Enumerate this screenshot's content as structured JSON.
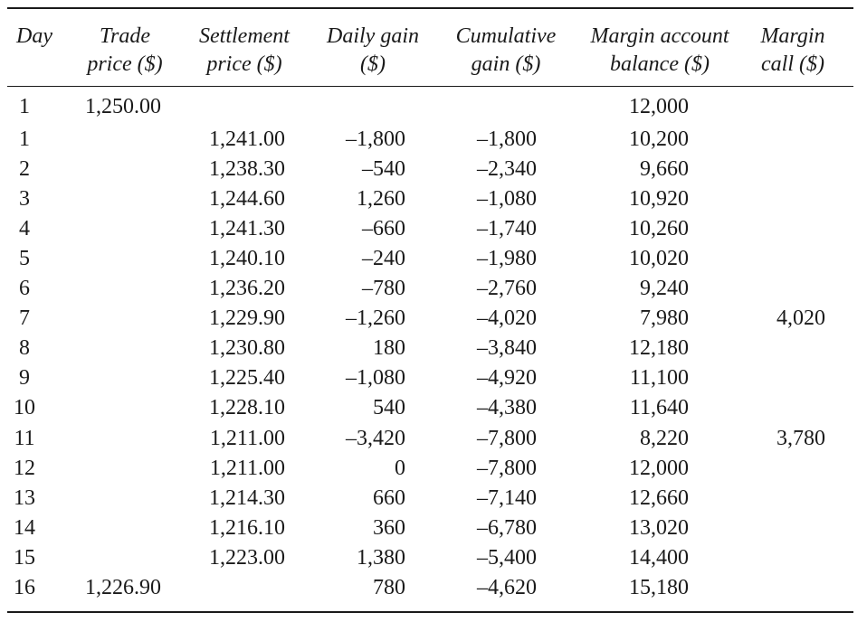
{
  "table": {
    "headers": {
      "day": [
        "Day"
      ],
      "trade": [
        "Trade",
        "price ($)"
      ],
      "settlement": [
        "Settlement",
        "price ($)"
      ],
      "daily_gain": [
        "Daily gain",
        "($)"
      ],
      "cumulative_gain": [
        "Cumulative",
        "gain ($)"
      ],
      "margin_balance": [
        "Margin account",
        "balance ($)"
      ],
      "margin_call": [
        "Margin",
        "call ($)"
      ]
    },
    "rows": [
      {
        "day": "1",
        "trade": "1,250.00",
        "settlement": "",
        "daily_gain": "",
        "cumulative_gain": "",
        "margin_balance": "12,000",
        "margin_call": ""
      },
      {
        "day": "1",
        "trade": "",
        "settlement": "1,241.00",
        "daily_gain": "–1,800",
        "cumulative_gain": "–1,800",
        "margin_balance": "10,200",
        "margin_call": ""
      },
      {
        "day": "2",
        "trade": "",
        "settlement": "1,238.30",
        "daily_gain": "–540",
        "cumulative_gain": "–2,340",
        "margin_balance": "9,660",
        "margin_call": ""
      },
      {
        "day": "3",
        "trade": "",
        "settlement": "1,244.60",
        "daily_gain": "1,260",
        "cumulative_gain": "–1,080",
        "margin_balance": "10,920",
        "margin_call": ""
      },
      {
        "day": "4",
        "trade": "",
        "settlement": "1,241.30",
        "daily_gain": "–660",
        "cumulative_gain": "–1,740",
        "margin_balance": "10,260",
        "margin_call": ""
      },
      {
        "day": "5",
        "trade": "",
        "settlement": "1,240.10",
        "daily_gain": "–240",
        "cumulative_gain": "–1,980",
        "margin_balance": "10,020",
        "margin_call": ""
      },
      {
        "day": "6",
        "trade": "",
        "settlement": "1,236.20",
        "daily_gain": "–780",
        "cumulative_gain": "–2,760",
        "margin_balance": "9,240",
        "margin_call": ""
      },
      {
        "day": "7",
        "trade": "",
        "settlement": "1,229.90",
        "daily_gain": "–1,260",
        "cumulative_gain": "–4,020",
        "margin_balance": "7,980",
        "margin_call": "4,020"
      },
      {
        "day": "8",
        "trade": "",
        "settlement": "1,230.80",
        "daily_gain": "180",
        "cumulative_gain": "–3,840",
        "margin_balance": "12,180",
        "margin_call": ""
      },
      {
        "day": "9",
        "trade": "",
        "settlement": "1,225.40",
        "daily_gain": "–1,080",
        "cumulative_gain": "–4,920",
        "margin_balance": "11,100",
        "margin_call": ""
      },
      {
        "day": "10",
        "trade": "",
        "settlement": "1,228.10",
        "daily_gain": "540",
        "cumulative_gain": "–4,380",
        "margin_balance": "11,640",
        "margin_call": ""
      },
      {
        "day": "11",
        "trade": "",
        "settlement": "1,211.00",
        "daily_gain": "–3,420",
        "cumulative_gain": "–7,800",
        "margin_balance": "8,220",
        "margin_call": "3,780"
      },
      {
        "day": "12",
        "trade": "",
        "settlement": "1,211.00",
        "daily_gain": "0",
        "cumulative_gain": "–7,800",
        "margin_balance": "12,000",
        "margin_call": ""
      },
      {
        "day": "13",
        "trade": "",
        "settlement": "1,214.30",
        "daily_gain": "660",
        "cumulative_gain": "–7,140",
        "margin_balance": "12,660",
        "margin_call": ""
      },
      {
        "day": "14",
        "trade": "",
        "settlement": "1,216.10",
        "daily_gain": "360",
        "cumulative_gain": "–6,780",
        "margin_balance": "13,020",
        "margin_call": ""
      },
      {
        "day": "15",
        "trade": "",
        "settlement": "1,223.00",
        "daily_gain": "1,380",
        "cumulative_gain": "–5,400",
        "margin_balance": "14,400",
        "margin_call": ""
      },
      {
        "day": "16",
        "trade": "1,226.90",
        "settlement": "",
        "daily_gain": "780",
        "cumulative_gain": "–4,620",
        "margin_balance": "15,180",
        "margin_call": ""
      }
    ]
  }
}
